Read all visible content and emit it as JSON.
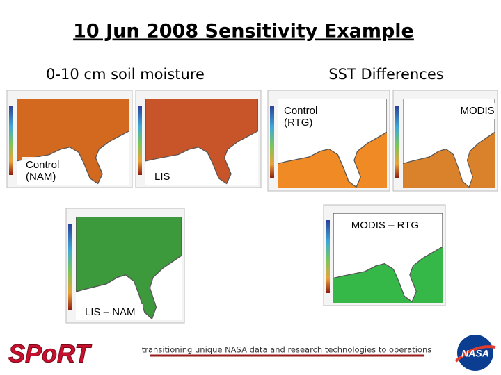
{
  "title": "10 Jun 2008 Sensitivity Example",
  "left": {
    "heading": "0-10 cm soil moisture",
    "maps": [
      {
        "label": [
          "Control",
          "(NAM)"
        ]
      },
      {
        "label": [
          "LIS"
        ]
      },
      {
        "label": [
          "LIS – NAM"
        ]
      }
    ]
  },
  "right": {
    "heading": "SST Differences",
    "maps": [
      {
        "label": [
          "Control",
          "(RTG)"
        ]
      },
      {
        "label": [
          "MODIS"
        ]
      },
      {
        "label": [
          "MODIS – RTG"
        ]
      }
    ]
  },
  "footer": {
    "tagline": "transitioning unique NASA data and research technologies to operations",
    "left_logo": "SPoRT",
    "right_logo": "NASA"
  }
}
